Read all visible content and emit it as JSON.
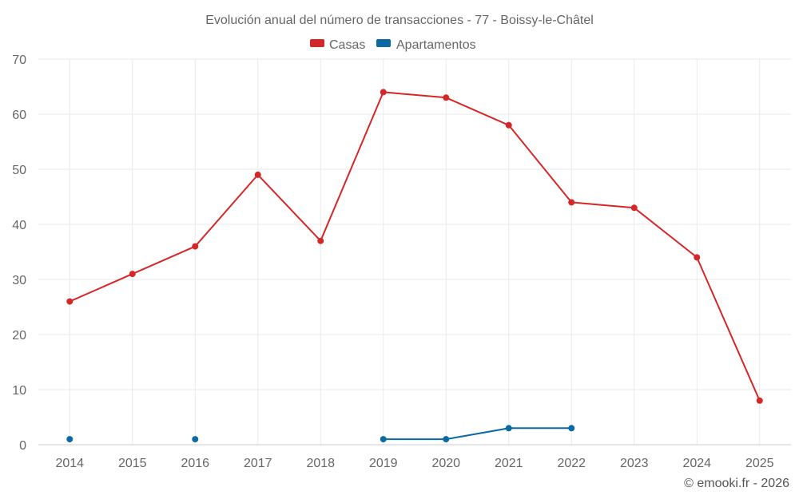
{
  "chart_data": {
    "type": "line",
    "title": "Evolución anual del número de transacciones - 77 - Boissy-le-Châtel",
    "categories": [
      "2014",
      "2015",
      "2016",
      "2017",
      "2018",
      "2019",
      "2020",
      "2021",
      "2022",
      "2023",
      "2024",
      "2025"
    ],
    "series": [
      {
        "name": "Casas",
        "color": "#d62728",
        "values": [
          26,
          31,
          36,
          49,
          37,
          64,
          63,
          58,
          44,
          43,
          34,
          8
        ]
      },
      {
        "name": "Apartamentos",
        "color": "#0a6aa1",
        "values": [
          1,
          null,
          1,
          null,
          null,
          1,
          1,
          3,
          3,
          null,
          null,
          null
        ]
      }
    ],
    "ylim": [
      0,
      70
    ],
    "yticks": [
      0,
      10,
      20,
      30,
      40,
      50,
      60,
      70
    ],
    "xlabel": "",
    "ylabel": "",
    "grid": true,
    "legend_position": "top-center"
  },
  "credit": "© emooki.fr - 2026"
}
